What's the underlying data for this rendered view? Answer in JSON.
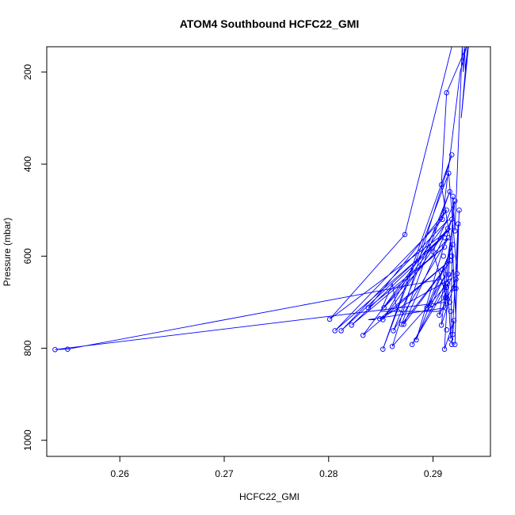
{
  "chart_data": {
    "type": "line",
    "title": "ATOM4 Southbound HCFC22_GMI",
    "xlabel": "HCFC22_GMI",
    "ylabel": "Pressure (mbar)",
    "xlim": [
      0.253,
      0.2955
    ],
    "ylim": [
      1035,
      145
    ],
    "y_reversed": true,
    "x_ticks": [
      0.26,
      0.27,
      0.28,
      0.29
    ],
    "x_tick_labels": [
      "0.26",
      "0.27",
      "0.28",
      "0.29"
    ],
    "y_ticks": [
      200,
      400,
      600,
      800,
      1000
    ],
    "y_tick_labels": [
      "200",
      "400",
      "600",
      "800",
      "1000"
    ],
    "grid": false,
    "legend": "none",
    "line_color": "#0000ff",
    "series": [
      {
        "points": [
          [
            0.2918,
            145
          ],
          [
            0.2873,
            553
          ],
          [
            0.2801,
            737
          ],
          [
            0.2917,
            540
          ],
          [
            0.2812,
            762
          ],
          [
            0.2915,
            520
          ],
          [
            0.2833,
            772
          ],
          [
            0.2916,
            610
          ],
          [
            0.2849,
            736
          ],
          [
            0.2918,
            648
          ],
          [
            0.288,
            792
          ],
          [
            0.2919,
            630
          ],
          [
            0.2922,
            735
          ],
          [
            0.2919,
            600
          ],
          [
            0.2908,
            445
          ],
          [
            0.2913,
            245
          ],
          [
            0.2932,
            145
          ],
          [
            0.2926,
            200
          ],
          [
            0.2909,
            520
          ],
          [
            0.2806,
            762
          ],
          [
            0.2909,
            560
          ],
          [
            0.2822,
            750
          ],
          [
            0.2911,
            580
          ],
          [
            0.2838,
            712
          ],
          [
            0.2913,
            500
          ],
          [
            0.2852,
            738
          ],
          [
            0.2914,
            540
          ],
          [
            0.2853,
            712
          ],
          [
            0.2915,
            560
          ],
          [
            0.2862,
            762
          ],
          [
            0.2916,
            460
          ],
          [
            0.287,
            748
          ],
          [
            0.2917,
            610
          ],
          [
            0.2872,
            748
          ],
          [
            0.2918,
            520
          ],
          [
            0.2884,
            782
          ],
          [
            0.2919,
            575
          ],
          [
            0.2894,
            712
          ],
          [
            0.2912,
            640
          ],
          [
            0.2897,
            712
          ],
          [
            0.2913,
            690
          ],
          [
            0.29,
            590
          ],
          [
            0.2921,
            480
          ],
          [
            0.2908,
            750
          ],
          [
            0.2922,
            650
          ],
          [
            0.2906,
            728
          ],
          [
            0.2917,
            560
          ],
          [
            0.2911,
            802
          ],
          [
            0.292,
            740
          ],
          [
            0.2918,
            792
          ],
          [
            0.2924,
            530
          ],
          [
            0.2921,
            792
          ],
          [
            0.2925,
            500
          ],
          [
            0.2923,
            638
          ],
          [
            0.2915,
            420
          ],
          [
            0.2852,
            802
          ],
          [
            0.2918,
            380
          ],
          [
            0.2861,
            796
          ],
          [
            0.2914,
            660
          ],
          [
            0.2917,
            780
          ],
          [
            0.2919,
            470
          ],
          [
            0.2921,
            545
          ],
          [
            0.2928,
            145
          ],
          [
            0.2929,
            200
          ],
          [
            0.293,
            145
          ],
          [
            0.2931,
            200
          ],
          [
            0.2933,
            145
          ],
          [
            0.2927,
            300
          ],
          [
            0.2934,
            145
          ]
        ]
      },
      {
        "points": [
          [
            0.2871,
            723
          ],
          [
            0.2865,
            712
          ],
          [
            0.2861,
            660
          ],
          [
            0.285,
            720
          ],
          [
            0.2905,
            720
          ],
          [
            0.2912,
            712
          ],
          [
            0.2838,
            738
          ],
          [
            0.2845,
            738
          ]
        ]
      },
      {
        "points": [
          [
            0.2908,
            650
          ],
          [
            0.255,
            802
          ],
          [
            0.2538,
            803
          ],
          [
            0.2912,
            700
          ],
          [
            0.2913,
            668
          ],
          [
            0.2912,
            712
          ],
          [
            0.2911,
            640
          ]
        ]
      }
    ],
    "markers": [
      [
        0.2538,
        803
      ],
      [
        0.255,
        802
      ],
      [
        0.2873,
        553
      ],
      [
        0.2801,
        737
      ],
      [
        0.2806,
        762
      ],
      [
        0.2812,
        762
      ],
      [
        0.2822,
        750
      ],
      [
        0.2833,
        772
      ],
      [
        0.2838,
        712
      ],
      [
        0.2849,
        736
      ],
      [
        0.2852,
        738
      ],
      [
        0.2853,
        712
      ],
      [
        0.2852,
        802
      ],
      [
        0.2861,
        796
      ],
      [
        0.2862,
        762
      ],
      [
        0.287,
        748
      ],
      [
        0.2872,
        748
      ],
      [
        0.288,
        792
      ],
      [
        0.2884,
        782
      ],
      [
        0.2894,
        712
      ],
      [
        0.2897,
        712
      ],
      [
        0.29,
        590
      ],
      [
        0.2906,
        728
      ],
      [
        0.2908,
        750
      ],
      [
        0.2911,
        802
      ],
      [
        0.2913,
        245
      ],
      [
        0.2918,
        792
      ],
      [
        0.2921,
        792
      ],
      [
        0.2923,
        638
      ],
      [
        0.2917,
        780
      ],
      [
        0.2921,
        545
      ],
      [
        0.2908,
        445
      ],
      [
        0.2909,
        520
      ],
      [
        0.2911,
        580
      ],
      [
        0.2913,
        500
      ],
      [
        0.2914,
        540
      ],
      [
        0.2915,
        560
      ],
      [
        0.2916,
        460
      ],
      [
        0.2917,
        610
      ],
      [
        0.2918,
        520
      ],
      [
        0.2919,
        575
      ],
      [
        0.2912,
        640
      ],
      [
        0.2913,
        690
      ],
      [
        0.2921,
        480
      ],
      [
        0.2922,
        650
      ],
      [
        0.292,
        740
      ],
      [
        0.2924,
        530
      ],
      [
        0.2925,
        500
      ],
      [
        0.2912,
        712
      ],
      [
        0.2913,
        668
      ],
      [
        0.2915,
        420
      ],
      [
        0.2918,
        380
      ],
      [
        0.2919,
        470
      ],
      [
        0.2914,
        660
      ],
      [
        0.291,
        600
      ],
      [
        0.2916,
        700
      ],
      [
        0.2917,
        720
      ],
      [
        0.292,
        670
      ],
      [
        0.2922,
        670
      ],
      [
        0.2911,
        560
      ],
      [
        0.2909,
        630
      ],
      [
        0.2912,
        690
      ],
      [
        0.2918,
        600
      ],
      [
        0.2915,
        640
      ],
      [
        0.2913,
        760
      ],
      [
        0.2919,
        770
      ]
    ]
  }
}
